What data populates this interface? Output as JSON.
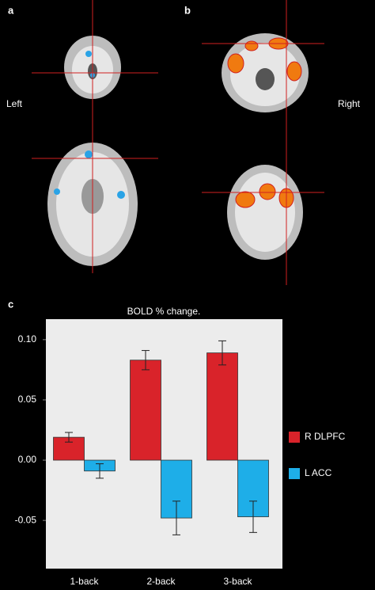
{
  "panel_labels": [
    "a",
    "b",
    "c"
  ],
  "side_labels": {
    "left": "Left",
    "right": "Right"
  },
  "chart_data": {
    "type": "bar",
    "title": "BOLD % change.",
    "categories": [
      "1-back",
      "2-back",
      "3-back"
    ],
    "series": [
      {
        "name": "R DLPFC",
        "color": "#d9232a",
        "values": [
          0.019,
          0.083,
          0.089
        ],
        "errors": [
          0.004,
          0.008,
          0.01
        ]
      },
      {
        "name": "L ACC",
        "color": "#1eaee8",
        "values": [
          -0.009,
          -0.048,
          -0.047
        ],
        "errors": [
          0.006,
          0.014,
          0.013
        ]
      }
    ],
    "ylim": [
      -0.09,
      0.117
    ],
    "yticks": [
      {
        "value": 0.1,
        "label": "0.10"
      },
      0.05,
      {
        "value": 0,
        "label": "0.00"
      },
      -0.05
    ],
    "legend": "right"
  }
}
